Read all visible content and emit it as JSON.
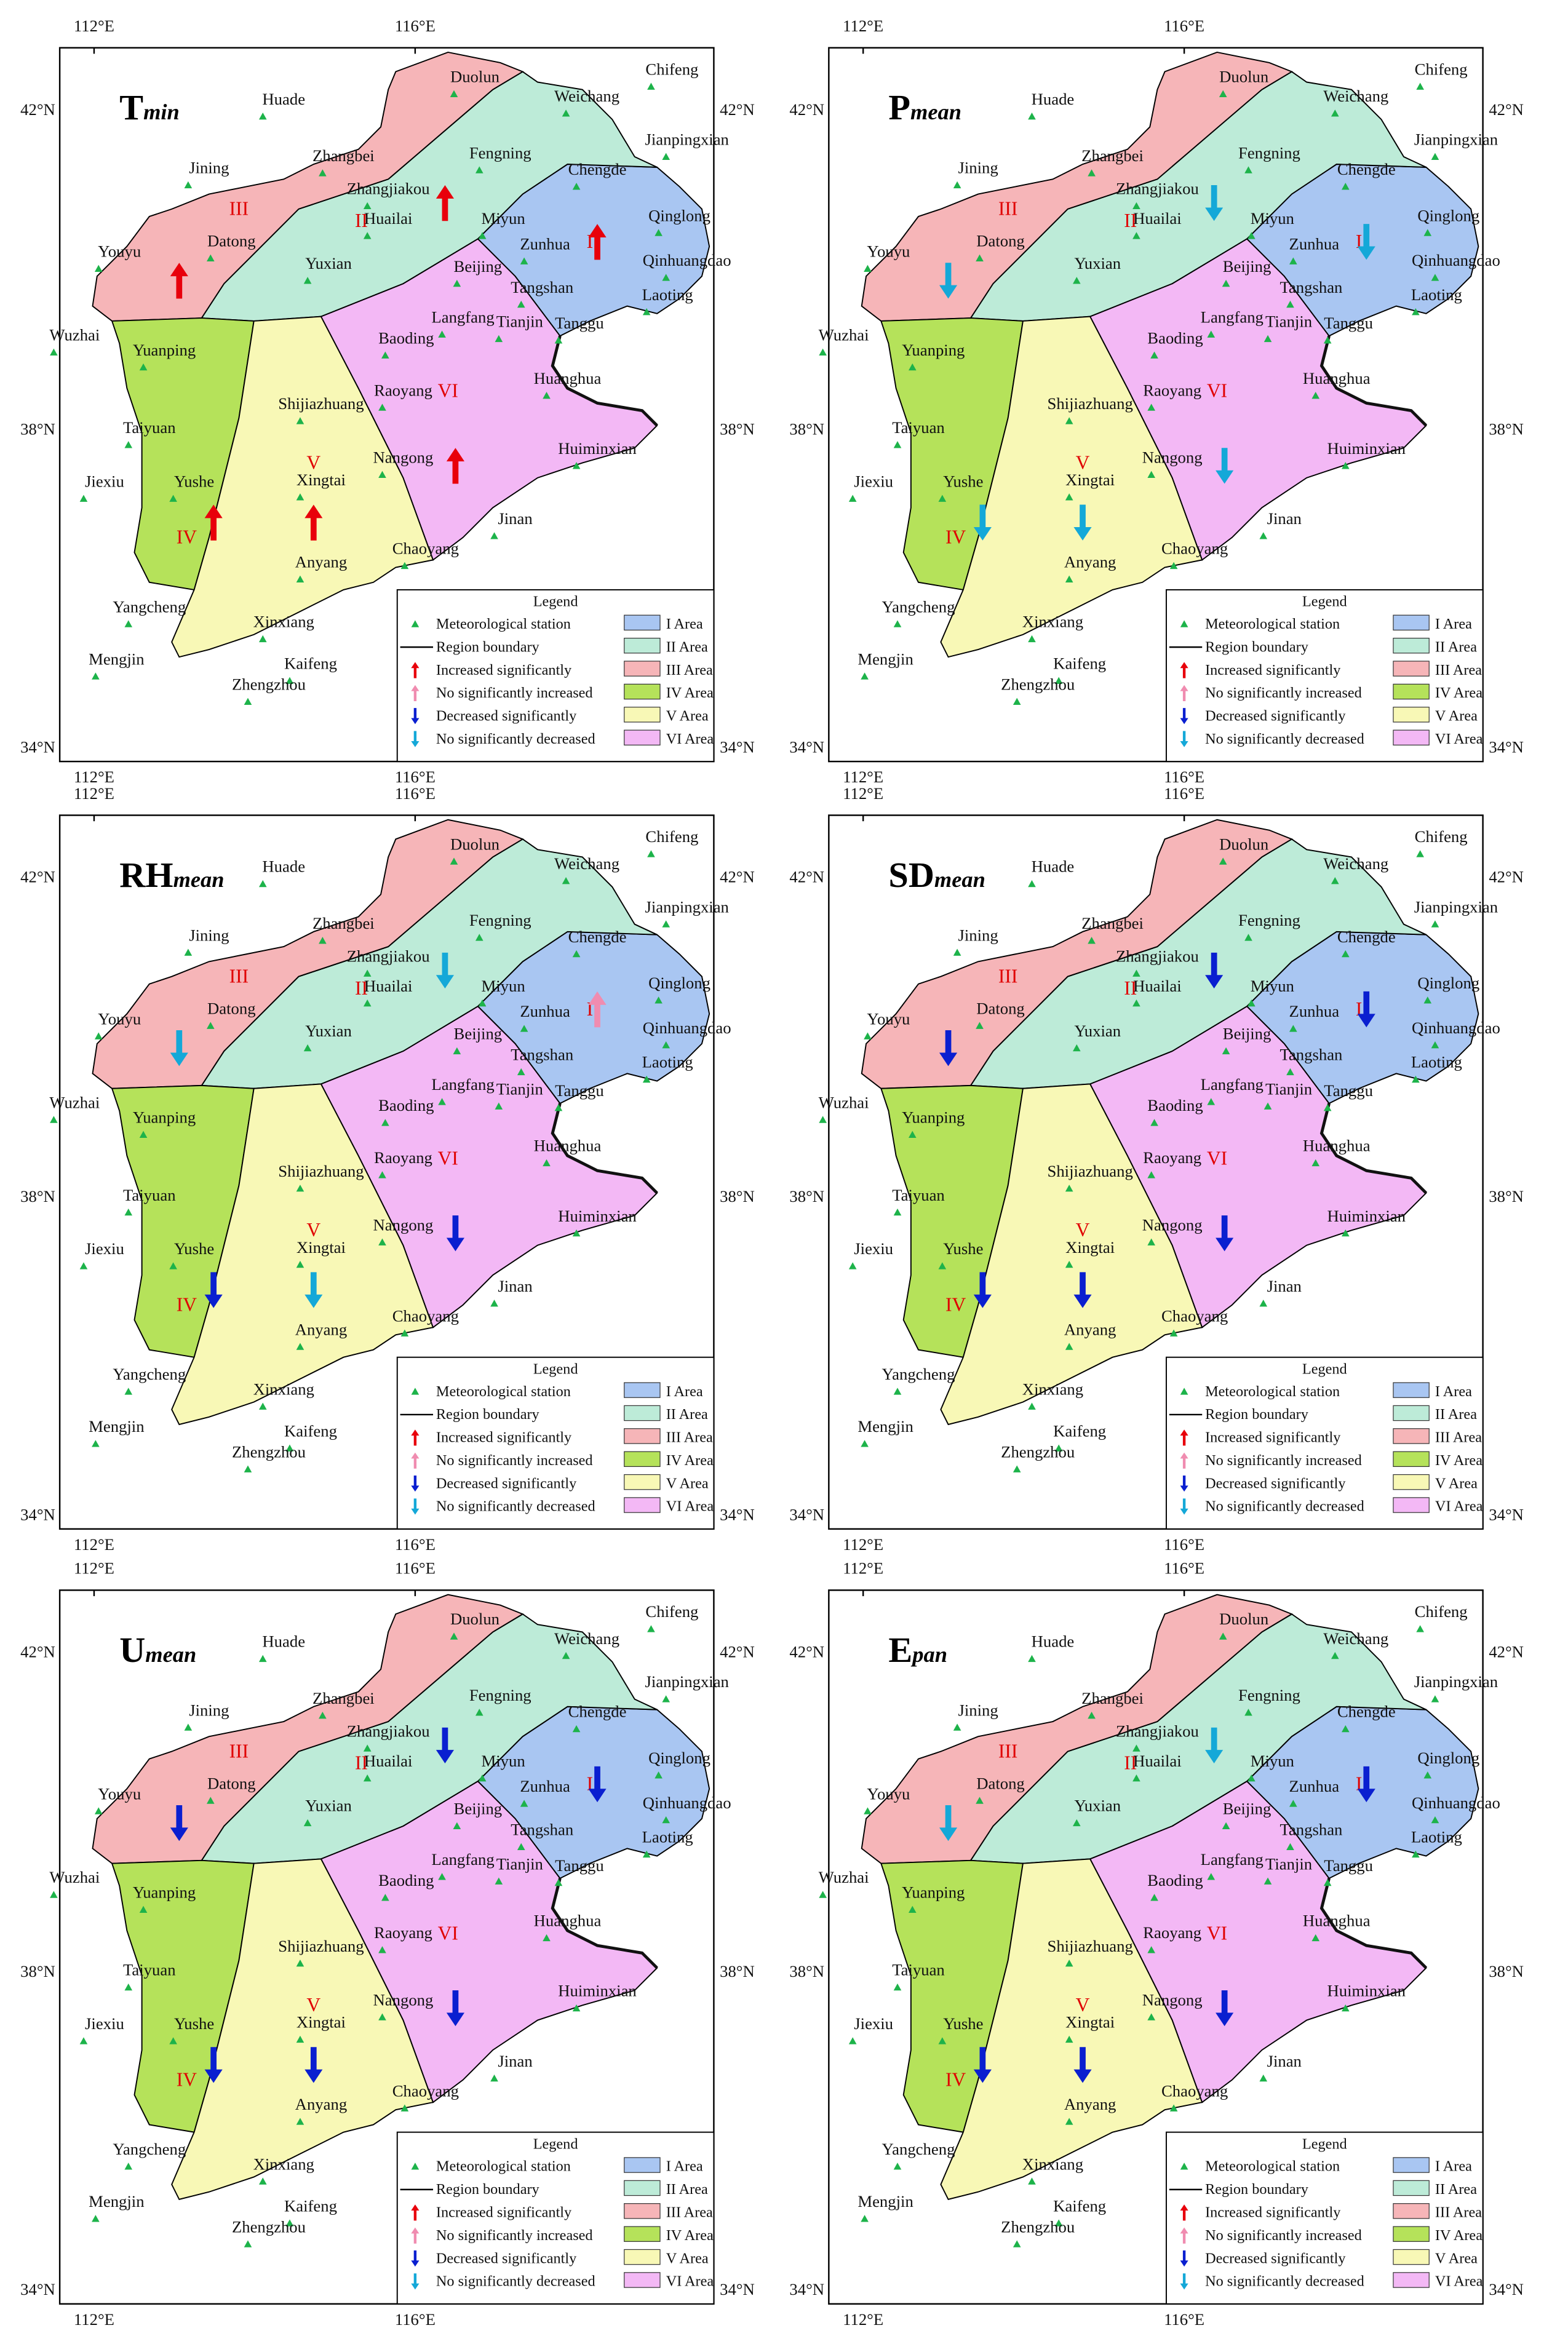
{
  "panels": [
    {
      "title": "T",
      "subscript": "min",
      "arrows": [
        "#e8000b",
        "#e8000b",
        "#e8000b",
        "#e8000b",
        "#e8000b",
        "#e8000b"
      ]
    },
    {
      "title": "P",
      "subscript": "mean",
      "arrows": [
        "#14a8d8",
        "#14a8d8",
        "#14a8d8",
        "#14a8d8",
        "#14a8d8",
        "#14a8d8"
      ]
    },
    {
      "title": "RH",
      "subscript": "mean",
      "arrows": [
        "#f08cb0",
        "#14a8d8",
        "#14a8d8",
        "#0a1fd0",
        "#14a8d8",
        "#0a1fd0"
      ]
    },
    {
      "title": "SD",
      "subscript": "mean",
      "arrows": [
        "#0a1fd0",
        "#0a1fd0",
        "#0a1fd0",
        "#0a1fd0",
        "#0a1fd0",
        "#0a1fd0"
      ]
    },
    {
      "title": "U",
      "subscript": "mean",
      "arrows": [
        "#0a1fd0",
        "#0a1fd0",
        "#0a1fd0",
        "#0a1fd0",
        "#0a1fd0",
        "#0a1fd0"
      ]
    },
    {
      "title": "E",
      "subscript": "pan",
      "arrows": [
        "#0a1fd0",
        "#14a8d8",
        "#14a8d8",
        "#0a1fd0",
        "#0a1fd0",
        "#0a1fd0"
      ]
    }
  ],
  "stations": [
    "Duolun",
    "Weichang",
    "Chifeng",
    "Huade",
    "Jianpingxian",
    "Zhangbei",
    "Fengning",
    "Jining",
    "Zhangjiakou",
    "Chengde",
    "Huailai",
    "Miyun",
    "Qinglong",
    "Youyu",
    "Datong",
    "Zunhua",
    "Qinhuangdao",
    "Yuxian",
    "Beijing",
    "Tangshan",
    "Laoting",
    "Wuzhai",
    "Langfang",
    "Tianjin",
    "Tanggu",
    "Yuanping",
    "Baoding",
    "Huanghua",
    "Shijiazhuang",
    "Raoyang",
    "Taiyuan",
    "Nangong",
    "Huiminxian",
    "Jiexiu",
    "Yushe",
    "Xingtai",
    "Jinan",
    "Anyang",
    "Chaoyang",
    "Yangcheng",
    "Xinxiang",
    "Mengjin",
    "Kaifeng",
    "Zhengzhou"
  ],
  "region_labels": [
    "I",
    "II",
    "III",
    "IV",
    "V",
    "VI"
  ],
  "lon_labels": [
    "112°E",
    "116°E"
  ],
  "lat_labels": [
    "42°N",
    "38°N",
    "34°N"
  ],
  "legend": {
    "title": "Legend",
    "symbols": [
      {
        "label": "Meteorological station",
        "color": "#1db34a"
      },
      {
        "label": "Region boundary",
        "color": "#000000"
      },
      {
        "label": "Increased significantly",
        "color": "#e8000b"
      },
      {
        "label": "No significantly increased",
        "color": "#f08cb0"
      },
      {
        "label": "Decreased significantly",
        "color": "#0a1fd0"
      },
      {
        "label": "No significantly decreased",
        "color": "#14a8d8"
      }
    ],
    "areas": [
      {
        "label": "I Area",
        "color": "#a9c6f2"
      },
      {
        "label": "II Area",
        "color": "#bdebd8"
      },
      {
        "label": "III Area",
        "color": "#f6b5b8"
      },
      {
        "label": "IV Area",
        "color": "#b5e25a"
      },
      {
        "label": "V Area",
        "color": "#f8f8b6"
      },
      {
        "label": "VI Area",
        "color": "#f3b8f5"
      }
    ]
  }
}
